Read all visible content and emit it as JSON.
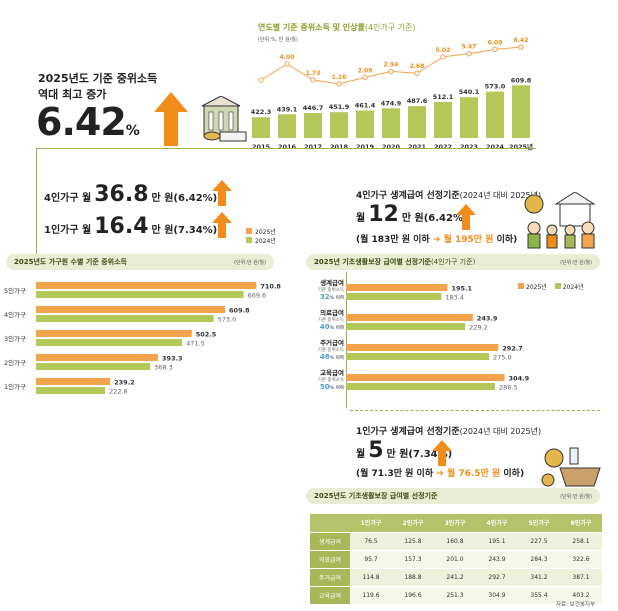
{
  "headline": {
    "line1": "2025년도 기준 중위소득",
    "line2": "역대 최고 증가",
    "value": "6.42",
    "unit": "%"
  },
  "trend": {
    "title": "연도별 기준 중위소득 및 인상률",
    "title_suffix": "(4인가구 기준)",
    "unit": "(단위:%, 만 원/월)"
  },
  "increase4": {
    "pre": "4인가구 월",
    "num": "36.8",
    "post": "만 원(6.42%)"
  },
  "increase1": {
    "pre": "1인가구 월",
    "num": "16.4",
    "post": "만 원(7.34%)"
  },
  "legend": {
    "y2025": "2025년",
    "y2024": "2024년"
  },
  "hh_section": {
    "title": "2025년도 가구원 수별 기준 중위소득",
    "unit": "(단위:만 원/월)"
  },
  "benefit_box": {
    "title": "4인가구 생계급여 선정기준",
    "title_suffix": "(2024년 대비 2025년)",
    "pre": "월",
    "num": "12",
    "post": "만 원(6.42%)",
    "range_a": "(월 183만 원 이하",
    "range_b": "월 195만 원",
    "range_c": "이하)"
  },
  "std_section": {
    "title": "2025년 기초생활보장 급여별 선정기준",
    "title_suffix": "(4인가구 기준)",
    "unit": "(단위:만 원/월)"
  },
  "benefits": [
    {
      "name": "생계급여",
      "sub": "기준 중위소득",
      "pct": "32",
      "pct_suffix": "% 이하"
    },
    {
      "name": "의료급여",
      "sub": "기준 중위소득",
      "pct": "40",
      "pct_suffix": "% 이하"
    },
    {
      "name": "주거급여",
      "sub": "기준 중위소득",
      "pct": "48",
      "pct_suffix": "% 이하"
    },
    {
      "name": "교육급여",
      "sub": "기준 중위소득",
      "pct": "50",
      "pct_suffix": "% 이하"
    }
  ],
  "single_box": {
    "title": "1인가구 생계급여 선정기준",
    "title_suffix": "(2024년 대비 2025년)",
    "pre": "월",
    "num": "5",
    "post": "만 원(7.34%)",
    "range_a": "(월 71.3만 원 이하",
    "range_b": "월 76.5만 원",
    "range_c": "이하)"
  },
  "table_section": {
    "title": "2025년도 기초생활보장 급여별 선정기준",
    "unit": "(단위:만 원/월)"
  },
  "table": {
    "headers": [
      "",
      "1인가구",
      "2인가구",
      "3인가구",
      "4인가구",
      "5인가구",
      "6인가구"
    ],
    "rows": [
      [
        "생계급여",
        "76.5",
        "125.8",
        "160.8",
        "195.1",
        "227.5",
        "258.1"
      ],
      [
        "의료급여",
        "95.7",
        "157.3",
        "201.0",
        "243.9",
        "284.3",
        "322.6"
      ],
      [
        "주거급여",
        "114.8",
        "188.8",
        "241.2",
        "292.7",
        "341.2",
        "387.1"
      ],
      [
        "교육급여",
        "119.6",
        "196.6",
        "251.3",
        "304.9",
        "355.4",
        "403.2"
      ]
    ]
  },
  "source": "자료: 보건복지부",
  "colors": {
    "olive": "#b4c759",
    "orange": "#f5a24c",
    "arrow": "#f08c1a"
  },
  "chart_data": [
    {
      "type": "bar",
      "title": "연도별 기준 중위소득 및 인상률",
      "categories": [
        "2015",
        "2016",
        "2017",
        "2018",
        "2019",
        "2020",
        "2021",
        "2022",
        "2023",
        "2024",
        "2025년"
      ],
      "series": [
        {
          "name": "기준 중위소득",
          "values": [
            422.3,
            439.1,
            446.7,
            451.9,
            461.4,
            474.9,
            487.6,
            512.1,
            540.1,
            573.0,
            609.8
          ]
        }
      ],
      "rates": [
        null,
        "4.00",
        "1.73",
        "1.16",
        "2.09",
        "2.94",
        "2.68",
        "5.02",
        "5.47",
        "6.09",
        "6.42"
      ]
    },
    {
      "type": "bar",
      "title": "2025년도 가구원 수별 기준 중위소득",
      "categories": [
        "5인가구",
        "4인가구",
        "3인가구",
        "2인가구",
        "1인가구"
      ],
      "series": [
        {
          "name": "2025년",
          "values": [
            710.8,
            609.8,
            502.5,
            393.3,
            239.2
          ]
        },
        {
          "name": "2024년",
          "values": [
            669.6,
            573.0,
            471.5,
            368.3,
            222.8
          ]
        }
      ]
    },
    {
      "type": "bar",
      "title": "2025년 기초생활보장 급여별 선정기준",
      "categories": [
        "생계급여",
        "의료급여",
        "주거급여",
        "교육급여"
      ],
      "series": [
        {
          "name": "2025년",
          "values": [
            195.1,
            243.9,
            292.7,
            304.9
          ]
        },
        {
          "name": "2024년",
          "values": [
            183.4,
            229.2,
            275.0,
            286.5
          ]
        }
      ]
    }
  ]
}
